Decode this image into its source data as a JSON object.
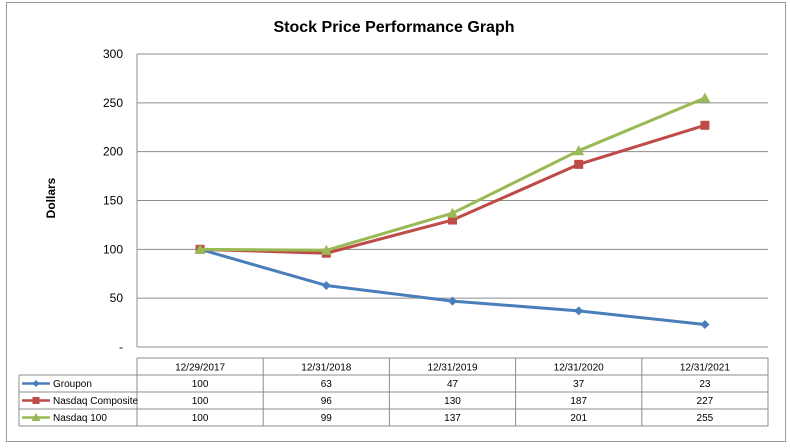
{
  "chart_data": {
    "type": "line",
    "title": "Stock Price Performance Graph",
    "xlabel": "",
    "ylabel": "Dollars",
    "categories": [
      "12/29/2017",
      "12/31/2018",
      "12/31/2019",
      "12/31/2020",
      "12/31/2021"
    ],
    "ylim": [
      0,
      300
    ],
    "yticks": [
      0,
      50,
      100,
      150,
      200,
      250,
      300
    ],
    "ytick_labels": [
      "-",
      "50",
      "100",
      "150",
      "200",
      "250",
      "300"
    ],
    "grid": true,
    "legend": "data-table",
    "series": [
      {
        "name": "Groupon",
        "values": [
          100,
          63,
          47,
          37,
          23
        ],
        "color": "#4a7ebb",
        "marker": "diamond"
      },
      {
        "name": "Nasdaq Composite",
        "values": [
          100,
          96,
          130,
          187,
          227
        ],
        "color": "#be4b48",
        "marker": "square"
      },
      {
        "name": "Nasdaq 100",
        "values": [
          100,
          99,
          137,
          201,
          255
        ],
        "color": "#98b954",
        "marker": "triangle"
      }
    ]
  }
}
